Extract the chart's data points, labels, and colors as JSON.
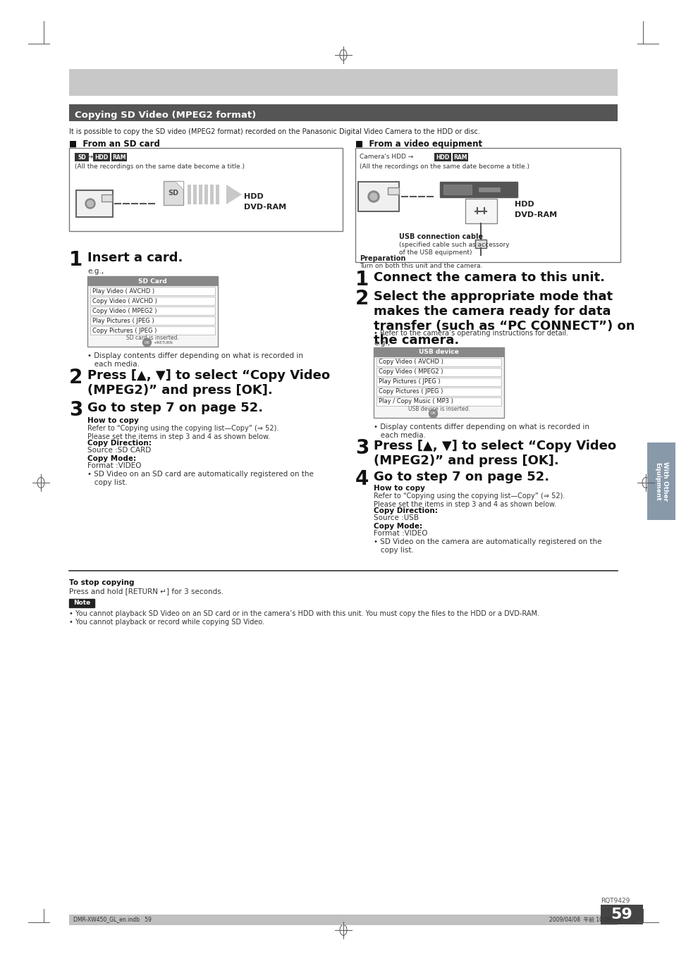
{
  "page_bg": "#ffffff",
  "title_bar_color": "#555555",
  "title_text": "Copying SD Video (MPEG2 format)",
  "title_text_color": "#ffffff",
  "intro_text": "It is possible to copy the SD video (MPEG2 format) recorded on the Panasonic Digital Video Camera to the HDD or disc.",
  "section_left_title": "■  From an SD card",
  "section_right_title": "■  From a video equipment",
  "hdd_label": "HDD",
  "dvdram_label": "DVD-RAM",
  "step1_left_text": "Insert a card.",
  "step2_left_text": "Press [▲, ▼] to select “Copy Video\n(MPEG2)” and press [OK].",
  "step3_left_text": "Go to step 7 on page 52.",
  "howtocopy_title": "How to copy",
  "howtocopy_body": "Refer to “Copying using the copying list—Copy” (⇒ 52).\nPlease set the items in step 3 and 4 as shown below.",
  "copy_direction_label": "Copy Direction:",
  "copy_direction_val_left": "Source :SD CARD",
  "copy_mode_label": "Copy Mode:",
  "copy_mode_val_left": "Format :VIDEO",
  "bullet_left": "• SD Video on an SD card are automatically registered on the\n   copy list.",
  "step1_right_text": "Connect the camera to this unit.",
  "step2_right_text": "Select the appropriate mode that\nmakes the camera ready for data\ntransfer (such as “PC CONNECT”) on\nthe camera.",
  "refer_right": "• Refer to the camera’s operating instructions for detail.",
  "eg_right": "e.g.,",
  "step3_right_text": "Press [▲, ▼] to select “Copy Video\n(MPEG2)” and press [OK].",
  "step4_right_text": "Go to step 7 on page 52.",
  "howtocopy_right_body": "Refer to “Copying using the copying list—Copy” (⇒ 52).\nPlease set the items in step 3 and 4 as shown below.",
  "copy_direction_val_right": "Source :USB",
  "copy_mode_val_right": "Format :VIDEO",
  "bullet_right": "• SD Video on the camera are automatically registered on the\n   copy list.",
  "display_bullet": "• Display contents differ depending on what is recorded in\n   each media.",
  "display_bullet2": "• Display contents differ depending on what is recorded in\n   each media.",
  "footer_stop": "To stop copying",
  "footer_stop_body": "Press and hold [RETURN ↵] for 3 seconds.",
  "footer_note_body": "• You cannot playback SD Video on an SD card or in the camera’s HDD with this unit. You must copy the files to the HDD or a DVD-RAM.\n• You cannot playback or record while copying SD Video.",
  "page_num": "59",
  "model_code": "RQT9429",
  "bottom_left": "DMR-XW450_GL_en.indb   59",
  "bottom_right": "2009/04/08  午前 10:06:30",
  "sidebar_text": "With Other\nEquipment",
  "sidebar_color": "#7a8a9a",
  "eg_left": "e.g.,"
}
